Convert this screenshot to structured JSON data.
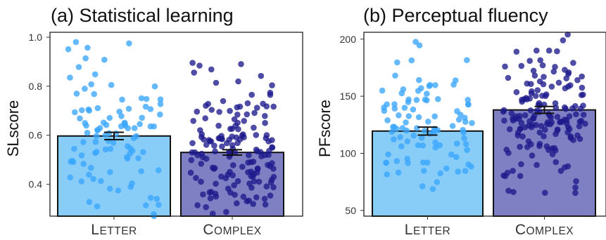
{
  "chart_data": [
    {
      "type": "bar",
      "title": "(a) Statistical learning",
      "ylabel": "SLscore",
      "xlabel": "",
      "categories": [
        "Letter",
        "Complex"
      ],
      "values": [
        0.597,
        0.53
      ],
      "error": [
        0.015,
        0.011
      ],
      "ylim": [
        0.27,
        1.02
      ],
      "yticks": [
        0.4,
        0.6,
        0.8,
        1.0
      ],
      "ytick_labels": [
        "0.4",
        "0.6",
        "0.8",
        "1.0"
      ],
      "grid": false,
      "legend": "none",
      "bar_colors": [
        "#87cdf8",
        "#7f7fc4"
      ],
      "point_colors": [
        "#3aa6ff",
        "#1d1a8c"
      ],
      "n_points": [
        100,
        160
      ],
      "point_range": [
        [
          0.27,
          0.99
        ],
        [
          0.28,
          0.92
        ]
      ]
    },
    {
      "type": "bar",
      "title": "(b) Perceptual fluency",
      "ylabel": "PFscore",
      "xlabel": "",
      "categories": [
        "Letter",
        "Complex"
      ],
      "values": [
        119.5,
        138
      ],
      "error": [
        3.5,
        3
      ],
      "ylim": [
        45,
        206
      ],
      "yticks": [
        50,
        100,
        150,
        200
      ],
      "ytick_labels": [
        "50",
        "100",
        "150",
        "200"
      ],
      "grid": false,
      "legend": "none",
      "bar_colors": [
        "#87cdf8",
        "#7f7fc4"
      ],
      "point_colors": [
        "#3aa6ff",
        "#1d1a8c"
      ],
      "n_points": [
        100,
        160
      ],
      "point_range": [
        [
          60,
          199
        ],
        [
          65,
          206
        ]
      ]
    }
  ]
}
